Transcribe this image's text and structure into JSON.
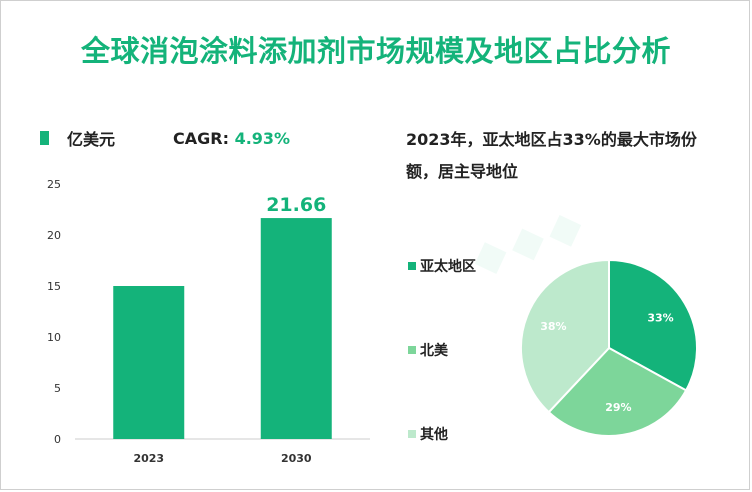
{
  "title": "全球消泡涂料添加剂市场规模及地区占比分析",
  "legend": {
    "unit": "亿美元",
    "cagr_label": "CAGR:",
    "cagr_value": "4.93%"
  },
  "pie_note": "2023年，亚太地区占33%的最大市场份额，居主导地位",
  "colors": {
    "bar": "#14b37a",
    "asia": "#14b37a",
    "na": "#7dd69a",
    "other": "#bde9cc"
  },
  "chart_data": [
    {
      "type": "bar",
      "categories": [
        "2023",
        "2030"
      ],
      "values": [
        15,
        21.66
      ],
      "data_labels": [
        "",
        "21.66"
      ],
      "ylim": [
        0,
        25
      ],
      "yticks": [
        0,
        5,
        10,
        15,
        20,
        25
      ],
      "ytick_labels": [
        "0",
        "5",
        "10",
        "15",
        "20",
        "25"
      ],
      "grid": false
    },
    {
      "type": "pie",
      "labels": [
        "亚太地区",
        "北美",
        "其他"
      ],
      "values": [
        33,
        29,
        38
      ],
      "value_labels": [
        "33%",
        "29%",
        "38%"
      ],
      "legend_position": "left"
    }
  ]
}
